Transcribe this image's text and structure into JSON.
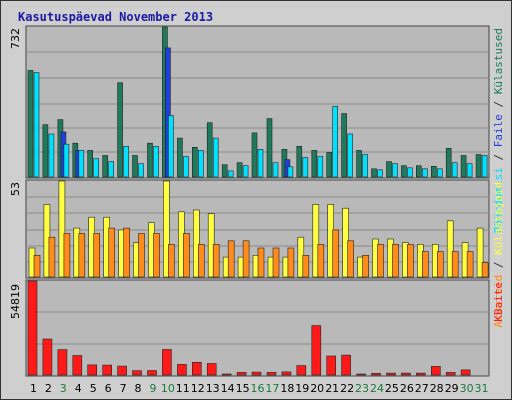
{
  "chart_data": {
    "type": "bar",
    "title": "Kasutuspäevad November 2013",
    "categories": [
      "1",
      "2",
      "3",
      "4",
      "5",
      "6",
      "7",
      "8",
      "9",
      "10",
      "11",
      "12",
      "13",
      "14",
      "15",
      "16",
      "17",
      "18",
      "19",
      "20",
      "21",
      "22",
      "23",
      "24",
      "25",
      "26",
      "27",
      "28",
      "29",
      "30",
      "31"
    ],
    "weekend_days": [
      "3",
      "9",
      "10",
      "16",
      "17",
      "23",
      "24",
      "30",
      "31"
    ],
    "panels": [
      {
        "name": "hits",
        "ymax_label": "732",
        "ymax": 732,
        "series": [
          {
            "name": "Külastused",
            "color": "#1e7a5a",
            "values": [
              520,
              255,
              280,
              165,
              130,
              105,
              460,
              105,
              165,
              732,
              190,
              145,
              265,
              60,
              70,
              215,
              285,
              135,
              150,
              130,
              120,
              310,
              130,
              40,
              75,
              55,
              55,
              52,
              140,
              105,
              110
            ]
          },
          {
            "name": "Faile",
            "color": "#1e3fd8",
            "values": [
              0,
              0,
              220,
              130,
              0,
              0,
              0,
              0,
              0,
              630,
              0,
              0,
              0,
              0,
              0,
              0,
              0,
              85,
              0,
              0,
              0,
              0,
              0,
              0,
              0,
              0,
              0,
              0,
              0,
              0,
              0
            ]
          },
          {
            "name": "Pöördumisi",
            "color": "#00e0ff",
            "values": [
              510,
              210,
              160,
              130,
              90,
              75,
              150,
              65,
              150,
              300,
              100,
              130,
              190,
              30,
              55,
              135,
              70,
              50,
              95,
              100,
              345,
              210,
              110,
              35,
              65,
              45,
              40,
              40,
              70,
              65,
              105
            ]
          }
        ]
      },
      {
        "name": "visits",
        "ymax_label": "53",
        "ymax": 53,
        "series": [
          {
            "name": "Külastajaid",
            "color": "#ffff40",
            "values": [
              16,
              40,
              53,
              27,
              33,
              33,
              26,
              19,
              30,
              53,
              36,
              37,
              35,
              11,
              11,
              12,
              11,
              11,
              22,
              40,
              40,
              38,
              11,
              21,
              21,
              19,
              18,
              18,
              31,
              19,
              27
            ]
          },
          {
            "name": "Arvuteid",
            "color": "#ff8c1a",
            "values": [
              12,
              22,
              24,
              24,
              24,
              27,
              27,
              24,
              24,
              18,
              24,
              18,
              18,
              20,
              20,
              16,
              16,
              16,
              12,
              18,
              26,
              20,
              12,
              18,
              18,
              18,
              14,
              14,
              14,
              14,
              8
            ]
          }
        ]
      },
      {
        "name": "kbytes",
        "ymax_label": "54819",
        "ymax": 54819,
        "series": [
          {
            "name": "KBaite",
            "color": "#ff1a1a",
            "values": [
              54819,
              21000,
              14800,
              11400,
              5900,
              5800,
              5200,
              2500,
              2600,
              14900,
              6200,
              7400,
              6700,
              500,
              1500,
              1700,
              1500,
              1800,
              5500,
              28800,
              11100,
              11600,
              500,
              1000,
              1100,
              1100,
              1100,
              5000,
              1500,
              3000,
              0
            ]
          }
        ]
      }
    ]
  },
  "colors": {
    "background": "#cfcfcf",
    "plot_bg": "#b9b9b9",
    "title": "#1a1aa6",
    "weekday_label": "#000000",
    "weekend_label": "#1a7a3a"
  }
}
